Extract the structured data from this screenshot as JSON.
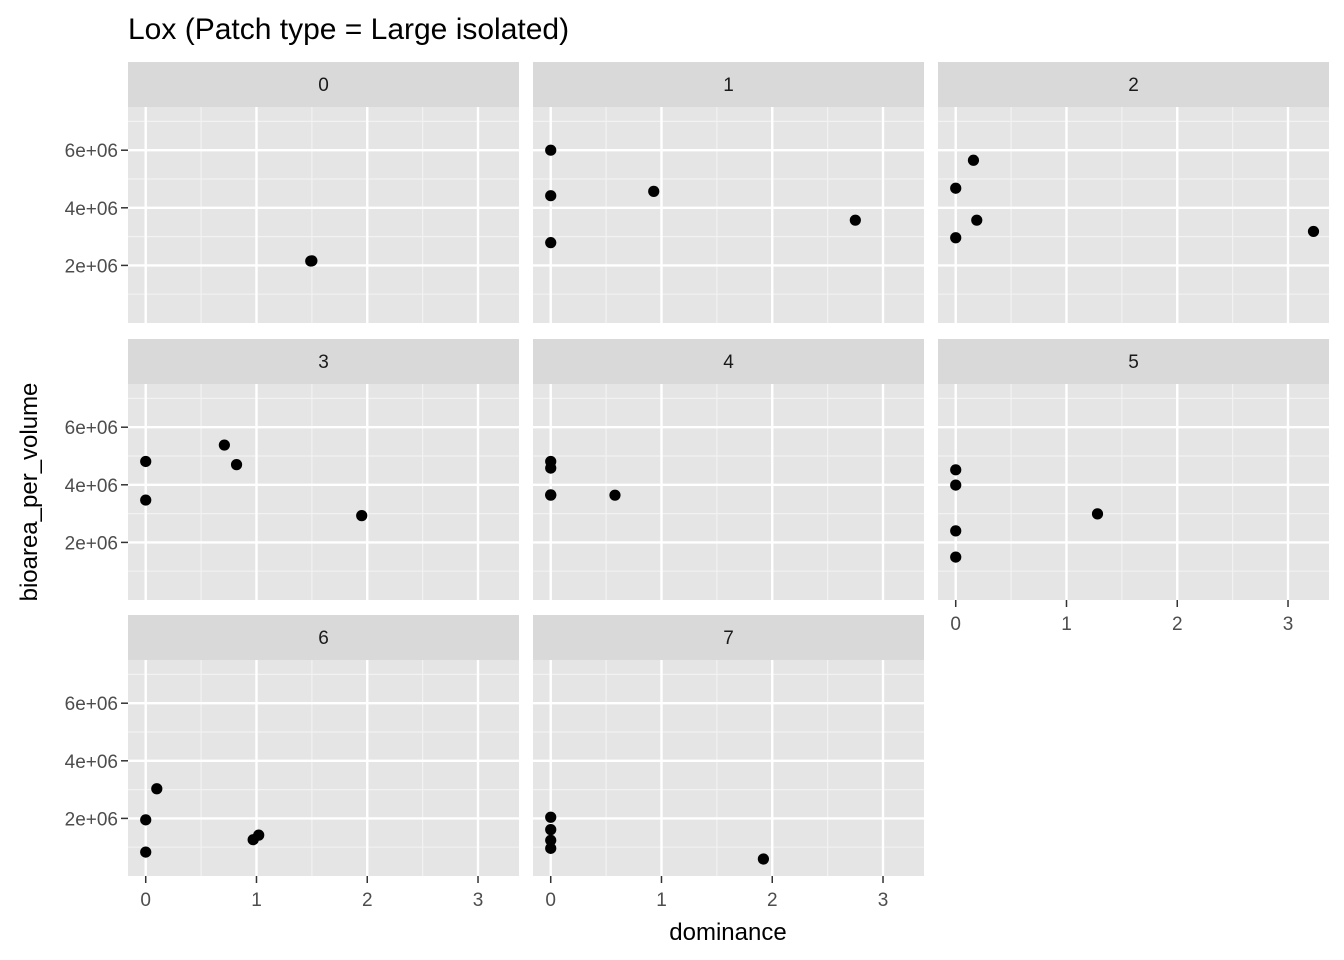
{
  "chart_data": {
    "type": "scatter",
    "title": "Lox (Patch type = Large isolated)",
    "xlabel": "dominance",
    "ylabel": "bioarea_per_volume",
    "xlim": [
      -0.16,
      3.37
    ],
    "ylim": [
      0,
      7500000
    ],
    "x_ticks": [
      0,
      1,
      2,
      3
    ],
    "x_tick_labels": [
      "0",
      "1",
      "2",
      "3"
    ],
    "y_ticks": [
      2000000,
      4000000,
      6000000
    ],
    "y_tick_labels": [
      "2e+06",
      "4e+06",
      "6e+06"
    ],
    "grid": true,
    "point_color": "#000000",
    "panel_background": "#e5e5e5",
    "strip_background": "#d9d9d9",
    "facets": [
      {
        "label": "0",
        "points": [
          {
            "x": 1.49,
            "y": 2150000
          },
          {
            "x": 1.5,
            "y": 2160000
          }
        ]
      },
      {
        "label": "1",
        "points": [
          {
            "x": 0.0,
            "y": 6000000
          },
          {
            "x": 0.0,
            "y": 4420000
          },
          {
            "x": 0.0,
            "y": 2790000
          },
          {
            "x": 0.93,
            "y": 4570000
          },
          {
            "x": 2.75,
            "y": 3570000
          }
        ]
      },
      {
        "label": "2",
        "points": [
          {
            "x": 0.16,
            "y": 5650000
          },
          {
            "x": 0.0,
            "y": 4680000
          },
          {
            "x": 0.19,
            "y": 3570000
          },
          {
            "x": 0.0,
            "y": 2960000
          },
          {
            "x": 3.23,
            "y": 3180000
          }
        ]
      },
      {
        "label": "3",
        "points": [
          {
            "x": 0.0,
            "y": 4810000
          },
          {
            "x": 0.71,
            "y": 5380000
          },
          {
            "x": 0.82,
            "y": 4700000
          },
          {
            "x": 0.0,
            "y": 3470000
          },
          {
            "x": 1.95,
            "y": 2930000
          }
        ]
      },
      {
        "label": "4",
        "points": [
          {
            "x": 0.0,
            "y": 4810000
          },
          {
            "x": 0.0,
            "y": 4580000
          },
          {
            "x": 0.0,
            "y": 3650000
          },
          {
            "x": 0.0,
            "y": 3640000
          },
          {
            "x": 0.58,
            "y": 3640000
          }
        ]
      },
      {
        "label": "5",
        "points": [
          {
            "x": 0.0,
            "y": 4520000
          },
          {
            "x": 0.0,
            "y": 3990000
          },
          {
            "x": 1.28,
            "y": 2990000
          },
          {
            "x": 0.0,
            "y": 2400000
          },
          {
            "x": 0.0,
            "y": 1490000
          }
        ]
      },
      {
        "label": "6",
        "points": [
          {
            "x": 0.1,
            "y": 3030000
          },
          {
            "x": 0.0,
            "y": 1950000
          },
          {
            "x": 1.02,
            "y": 1420000
          },
          {
            "x": 0.97,
            "y": 1260000
          },
          {
            "x": 0.0,
            "y": 830000
          }
        ]
      },
      {
        "label": "7",
        "points": [
          {
            "x": 0.0,
            "y": 2040000
          },
          {
            "x": 0.0,
            "y": 1610000
          },
          {
            "x": 0.0,
            "y": 1240000
          },
          {
            "x": 0.0,
            "y": 960000
          },
          {
            "x": 1.92,
            "y": 590000
          }
        ]
      }
    ]
  }
}
